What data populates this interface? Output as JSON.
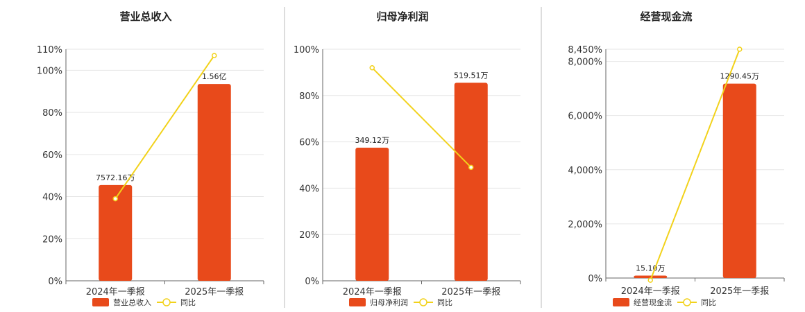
{
  "colors": {
    "bar": "#e84a1b",
    "line": "#f2d21b",
    "grid": "#e6e6e6",
    "axis": "#666666",
    "divider": "#bbbbbb"
  },
  "chart_data": [
    {
      "type": "bar+line",
      "title": "营业总收入",
      "categories": [
        "2024年一季报",
        "2025年一季报"
      ],
      "series": [
        {
          "name": "营业总收入",
          "type": "bar",
          "values": [
            45.5,
            93.5
          ],
          "labels": [
            "7572.16万",
            "1.56亿"
          ]
        },
        {
          "name": "同比",
          "type": "line",
          "values": [
            39,
            107
          ]
        }
      ],
      "ylim": [
        0,
        110
      ],
      "yticks": [
        "0%",
        "20%",
        "40%",
        "60%",
        "80%",
        "100%",
        "110%"
      ],
      "ytick_values": [
        0,
        20,
        40,
        60,
        80,
        100,
        110
      ],
      "legend": "bottom",
      "grid": true
    },
    {
      "type": "bar+line",
      "title": "归母净利润",
      "categories": [
        "2024年一季报",
        "2025年一季报"
      ],
      "series": [
        {
          "name": "归母净利润",
          "type": "bar",
          "values": [
            57.5,
            85.5
          ],
          "labels": [
            "349.12万",
            "519.51万"
          ]
        },
        {
          "name": "同比",
          "type": "line",
          "values": [
            92,
            49
          ]
        }
      ],
      "ylim": [
        0,
        100
      ],
      "yticks": [
        "0%",
        "20%",
        "40%",
        "60%",
        "80%",
        "100%"
      ],
      "ytick_values": [
        0,
        20,
        40,
        60,
        80,
        100
      ],
      "legend": "bottom",
      "grid": true
    },
    {
      "type": "bar+line",
      "title": "经营现金流",
      "categories": [
        "2024年一季报",
        "2025年一季报"
      ],
      "series": [
        {
          "name": "经营现金流",
          "type": "bar",
          "values": [
            90,
            7180
          ],
          "labels": [
            "15.10万",
            "1290.45万"
          ]
        },
        {
          "name": "同比",
          "type": "line",
          "values": [
            -80,
            8450
          ]
        }
      ],
      "ylim": [
        0,
        8450
      ],
      "yticks": [
        "0%",
        "2,000%",
        "4,000%",
        "6,000%",
        "8,000%",
        "8,450%"
      ],
      "ytick_values": [
        0,
        2000,
        4000,
        6000,
        8000,
        8450
      ],
      "legend": "bottom",
      "grid": true
    }
  ]
}
